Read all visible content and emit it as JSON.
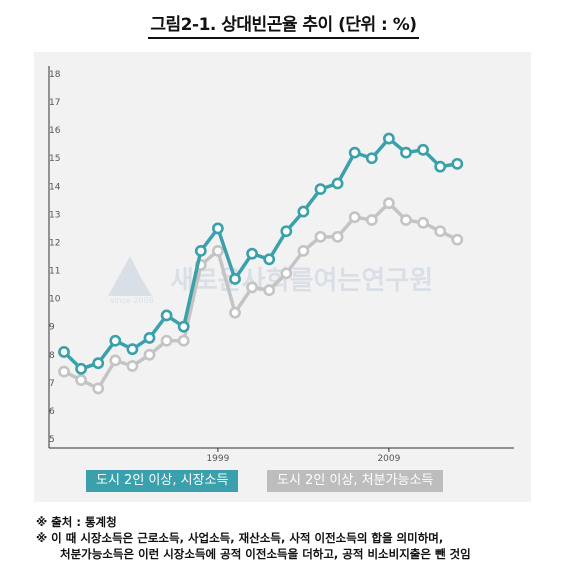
{
  "title": "그림2-1. 상대빈곤율 추이 (단위 : %)",
  "watermark": {
    "name": "새로운사회를여는연구원",
    "since": "since 2006"
  },
  "legend": {
    "market": "도시 2인 이상, 시장소득",
    "disposable": "도시 2인 이상, 처분가능소득"
  },
  "notes": {
    "source": "※ 출처 : 통계청",
    "note_line1": "※ 이 때 시장소득은 근로소득, 사업소득, 재산소득, 사적 이전소득의 합을 의미하며,",
    "note_line2": "처분가능소득은 이런 시장소득에 공적 이전소득을 더하고, 공적 비소비지출은 뺀 것임"
  },
  "colors": {
    "market": "#3aa0ab",
    "disposable": "#c4c4c4"
  },
  "chart_data": {
    "type": "line",
    "title": "그림2-1. 상대빈곤율 추이 (단위 : %)",
    "xlabel": "",
    "ylabel": "",
    "ylim": [
      5,
      18
    ],
    "yticks": [
      5,
      6,
      7,
      8,
      9,
      10,
      11,
      12,
      13,
      14,
      15,
      16,
      17,
      18
    ],
    "x": [
      "1990",
      "1991",
      "1992",
      "1993",
      "1994",
      "1995",
      "1996",
      "1997",
      "1998",
      "1999",
      "2000",
      "2001",
      "2002",
      "2003",
      "2004",
      "2005",
      "2006",
      "2007",
      "2008",
      "2009",
      "2010",
      "2011",
      "2012",
      "2013"
    ],
    "xtick_labels": [
      "1999",
      "2009"
    ],
    "grid": false,
    "legend_position": "bottom",
    "series": [
      {
        "name": "도시 2인 이상, 시장소득",
        "values": [
          8.1,
          7.5,
          7.7,
          8.5,
          8.2,
          8.6,
          9.4,
          9.0,
          11.7,
          12.5,
          10.7,
          11.6,
          11.4,
          12.4,
          13.1,
          13.9,
          14.1,
          15.2,
          15.0,
          15.7,
          15.2,
          15.3,
          14.7,
          14.8
        ]
      },
      {
        "name": "도시 2인 이상, 처분가능소득",
        "values": [
          7.4,
          7.1,
          6.8,
          7.8,
          7.6,
          8.0,
          8.5,
          8.5,
          11.2,
          11.7,
          9.5,
          10.4,
          10.3,
          10.9,
          11.7,
          12.2,
          12.2,
          12.9,
          12.8,
          13.4,
          12.8,
          12.7,
          12.4,
          12.1
        ]
      }
    ]
  }
}
